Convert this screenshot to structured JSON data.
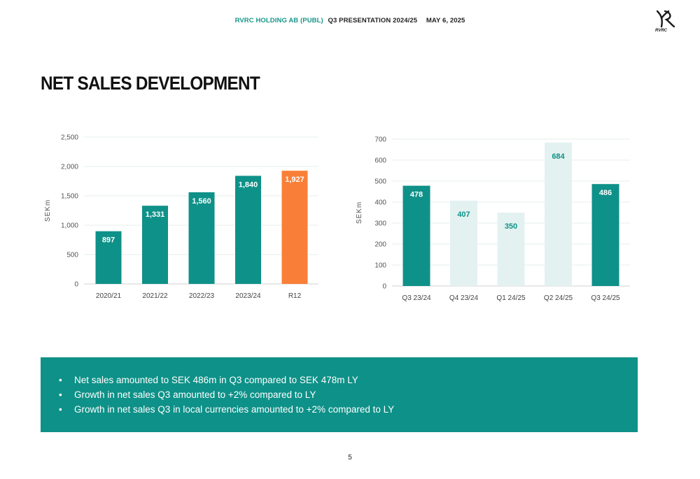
{
  "header": {
    "company": "RVRC HOLDING AB (PUBL)",
    "presentation": "Q3 PRESENTATION 2024/25",
    "date": "MAY 6, 2025"
  },
  "logo": {
    "text": "RVRC"
  },
  "page_title": "NET SALES DEVELOPMENT",
  "chart_data": [
    {
      "type": "bar",
      "categories": [
        "2020/21",
        "2021/22",
        "2022/23",
        "2023/24",
        "R12"
      ],
      "values": [
        897,
        1331,
        1560,
        1840,
        1927
      ],
      "value_labels": [
        "897",
        "1,331",
        "1,560",
        "1,840",
        "1,927"
      ],
      "ylabel": "SEKm",
      "ylim": [
        0,
        2500
      ],
      "yticks": [
        0,
        500,
        1000,
        1500,
        2000,
        2500
      ],
      "ytick_labels": [
        "0",
        "500",
        "1,000",
        "1,500",
        "2,000",
        "2,500"
      ],
      "bar_colors": [
        "#0e9188",
        "#0e9188",
        "#0e9188",
        "#0e9188",
        "#f97f38"
      ],
      "label_colors": [
        "#ffffff",
        "#ffffff",
        "#ffffff",
        "#ffffff",
        "#ffffff"
      ],
      "grid": true,
      "legend": "none"
    },
    {
      "type": "bar",
      "categories": [
        "Q3 23/24",
        "Q4 23/24",
        "Q1 24/25",
        "Q2 24/25",
        "Q3 24/25"
      ],
      "values": [
        478,
        407,
        350,
        684,
        486
      ],
      "value_labels": [
        "478",
        "407",
        "350",
        "684",
        "486"
      ],
      "ylabel": "SEKm",
      "ylim": [
        0,
        700
      ],
      "yticks": [
        0,
        100,
        200,
        300,
        400,
        500,
        600,
        700
      ],
      "ytick_labels": [
        "0",
        "100",
        "200",
        "300",
        "400",
        "500",
        "600",
        "700"
      ],
      "bar_colors": [
        "#0e9188",
        "#e3f2f1",
        "#e3f2f1",
        "#e3f2f1",
        "#0e9188"
      ],
      "label_colors": [
        "#ffffff",
        "#0e9188",
        "#0e9188",
        "#0e9188",
        "#ffffff"
      ],
      "grid": true,
      "legend": "none"
    }
  ],
  "summary": {
    "bullet": "•",
    "items": [
      "Net sales amounted to SEK 486m in Q3 compared to SEK 478m LY",
      "Growth in net sales Q3 amounted to +2% compared to LY",
      "Growth in net sales Q3 in local currencies amounted to +2% compared to LY"
    ]
  },
  "page_number": "5"
}
